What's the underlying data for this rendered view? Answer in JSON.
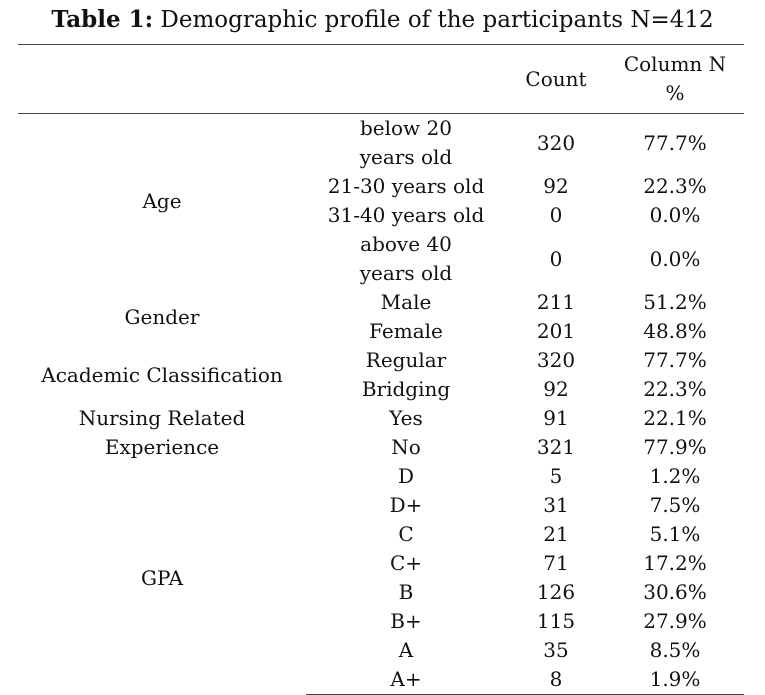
{
  "title": {
    "bold": "Table 1:",
    "rest": " Demographic profile of the participants N=412"
  },
  "headers": {
    "count": "Count",
    "percent_line1": "Column N",
    "percent_line2": "%"
  },
  "groups": [
    {
      "label": "Age",
      "label_lines": [
        "Age"
      ],
      "rows": [
        {
          "category": "below 20 years old",
          "count": "320",
          "percent": "77.7%"
        },
        {
          "category": "21-30 years old",
          "count": "92",
          "percent": "22.3%"
        },
        {
          "category": "31-40 years old",
          "count": "0",
          "percent": "0.0%"
        },
        {
          "category": "above 40 years old",
          "count": "0",
          "percent": "0.0%"
        }
      ]
    },
    {
      "label": "Gender",
      "label_lines": [
        "Gender"
      ],
      "rows": [
        {
          "category": "Male",
          "count": "211",
          "percent": "51.2%"
        },
        {
          "category": "Female",
          "count": "201",
          "percent": "48.8%"
        }
      ]
    },
    {
      "label": "Academic Classification",
      "label_lines": [
        "Academic Classification"
      ],
      "rows": [
        {
          "category": "Regular",
          "count": "320",
          "percent": "77.7%"
        },
        {
          "category": "Bridging",
          "count": "92",
          "percent": "22.3%"
        }
      ]
    },
    {
      "label": "Nursing Related Experience",
      "label_lines": [
        "Nursing Related",
        "Experience"
      ],
      "rows": [
        {
          "category": "Yes",
          "count": "91",
          "percent": "22.1%"
        },
        {
          "category": "No",
          "count": "321",
          "percent": "77.9%"
        }
      ]
    },
    {
      "label": "GPA",
      "label_lines": [
        "GPA"
      ],
      "rows": [
        {
          "category": "D",
          "count": "5",
          "percent": "1.2%"
        },
        {
          "category": "D+",
          "count": "31",
          "percent": "7.5%"
        },
        {
          "category": "C",
          "count": "21",
          "percent": "5.1%"
        },
        {
          "category": "C+",
          "count": "71",
          "percent": "17.2%"
        },
        {
          "category": "B",
          "count": "126",
          "percent": "30.6%"
        },
        {
          "category": "B+",
          "count": "115",
          "percent": "27.9%"
        },
        {
          "category": "A",
          "count": "35",
          "percent": "8.5%"
        },
        {
          "category": "A+",
          "count": "8",
          "percent": "1.9%"
        }
      ]
    }
  ]
}
